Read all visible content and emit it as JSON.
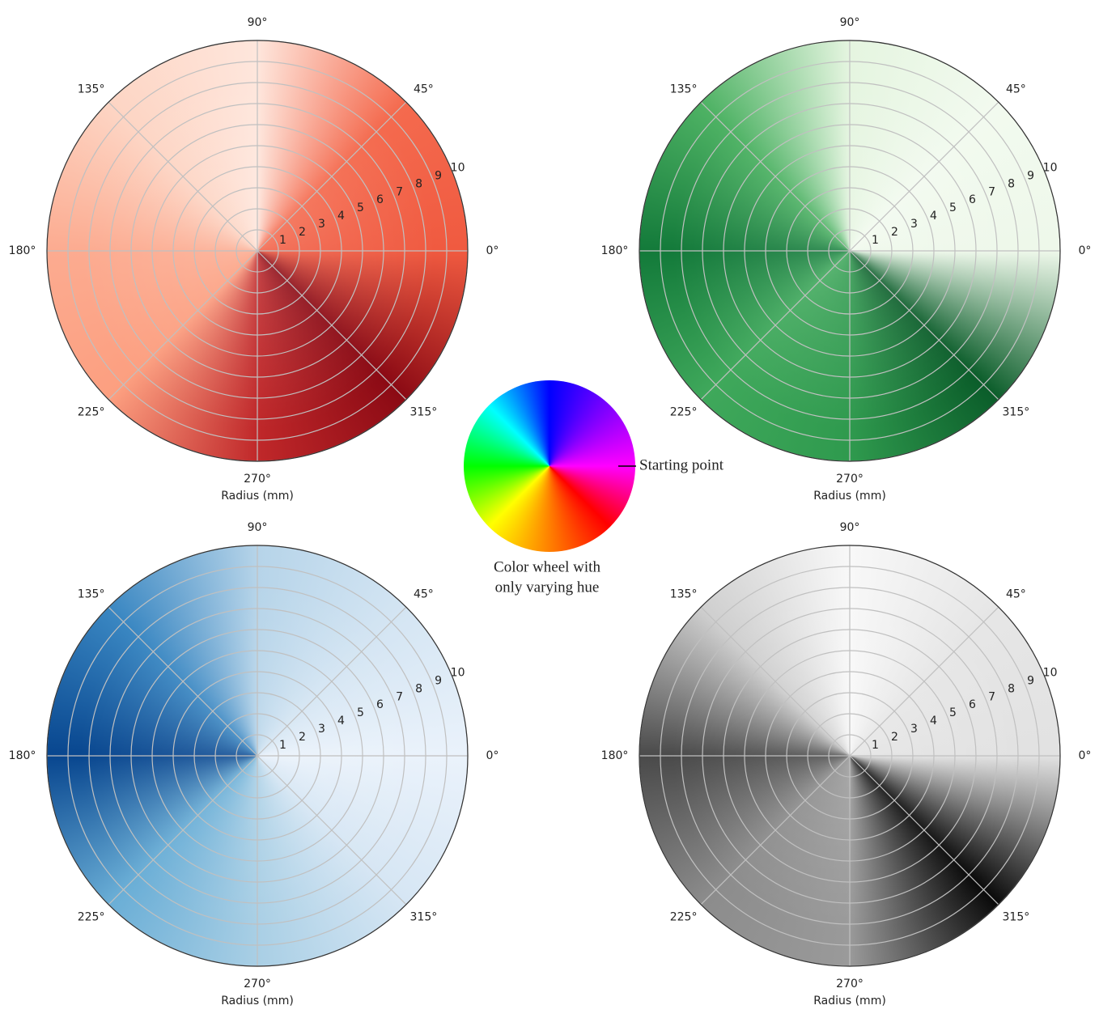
{
  "chart_data": [
    {
      "type": "polar",
      "xlabel": "Radius (mm)",
      "rlim": [
        0,
        10
      ],
      "rticks": [
        1,
        2,
        3,
        4,
        5,
        6,
        7,
        8,
        9,
        10
      ],
      "thetaticks": [
        {
          "value": 0,
          "label": "0°"
        },
        {
          "value": 45,
          "label": "45°"
        },
        {
          "value": 90,
          "label": "90°"
        },
        {
          "value": 135,
          "label": "135°"
        },
        {
          "value": 180,
          "label": "180°"
        },
        {
          "value": 225,
          "label": "225°"
        },
        {
          "value": 270,
          "label": "270°"
        },
        {
          "value": 315,
          "label": "315°"
        }
      ],
      "grid": true,
      "colors": [
        "#f05a40",
        "#8b0a14",
        "#c0282a",
        "#fc9f80",
        "#fcab90",
        "#fdd5c4",
        "#fee6dc",
        "#f46a4e",
        "#f05a40"
      ]
    },
    {
      "type": "polar",
      "xlabel": "Radius (mm)",
      "rlim": [
        0,
        10
      ],
      "rticks": [
        1,
        2,
        3,
        4,
        5,
        6,
        7,
        8,
        9,
        10
      ],
      "thetaticks": [
        {
          "value": 0,
          "label": "0°"
        },
        {
          "value": 45,
          "label": "45°"
        },
        {
          "value": 90,
          "label": "90°"
        },
        {
          "value": 135,
          "label": "135°"
        },
        {
          "value": 180,
          "label": "180°"
        },
        {
          "value": 225,
          "label": "225°"
        },
        {
          "value": 270,
          "label": "270°"
        },
        {
          "value": 315,
          "label": "315°"
        }
      ],
      "grid": true,
      "colors": [
        "#eef8ea",
        "#0b5d2a",
        "#2f9a4e",
        "#3fa85b",
        "#137a3a",
        "#4eb264",
        "#e5f5e0",
        "#f2faef",
        "#eef8ea"
      ]
    },
    {
      "type": "polar",
      "xlabel": "Radius (mm)",
      "rlim": [
        0,
        10
      ],
      "rticks": [
        1,
        2,
        3,
        4,
        5,
        6,
        7,
        8,
        9,
        10
      ],
      "thetaticks": [
        {
          "value": 0,
          "label": "0°"
        },
        {
          "value": 45,
          "label": "45°"
        },
        {
          "value": 90,
          "label": "90°"
        },
        {
          "value": 135,
          "label": "135°"
        },
        {
          "value": 180,
          "label": "180°"
        },
        {
          "value": 225,
          "label": "225°"
        },
        {
          "value": 270,
          "label": "270°"
        },
        {
          "value": 315,
          "label": "315°"
        }
      ],
      "grid": true,
      "colors": [
        "#eaf2fb",
        "#d6e6f4",
        "#a9cfe5",
        "#6aaed6",
        "#08468f",
        "#3a87c2",
        "#b6d4e9",
        "#d4e5f3",
        "#eaf2fb"
      ]
    },
    {
      "type": "polar",
      "xlabel": "Radius (mm)",
      "rlim": [
        0,
        10
      ],
      "rticks": [
        1,
        2,
        3,
        4,
        5,
        6,
        7,
        8,
        9,
        10
      ],
      "thetaticks": [
        {
          "value": 0,
          "label": "0°"
        },
        {
          "value": 45,
          "label": "45°"
        },
        {
          "value": 90,
          "label": "90°"
        },
        {
          "value": 135,
          "label": "135°"
        },
        {
          "value": 180,
          "label": "180°"
        },
        {
          "value": 225,
          "label": "225°"
        },
        {
          "value": 270,
          "label": "270°"
        },
        {
          "value": 315,
          "label": "315°"
        }
      ],
      "grid": true,
      "colors": [
        "#e2e2e2",
        "#0a0a0a",
        "#9a9a9a",
        "#8c8c8c",
        "#4a4a4a",
        "#cfcfcf",
        "#f8f8f8",
        "#e6e6e6",
        "#e2e2e2"
      ]
    }
  ],
  "color_wheel": {
    "annotation": "Starting point",
    "caption": [
      "Color wheel with",
      "only varying hue"
    ],
    "colors": [
      "#ff00ff",
      "#ff0000",
      "#ff8000",
      "#ffff00",
      "#00ff00",
      "#00ffff",
      "#0000ff",
      "#8000ff",
      "#ff00ff"
    ]
  }
}
